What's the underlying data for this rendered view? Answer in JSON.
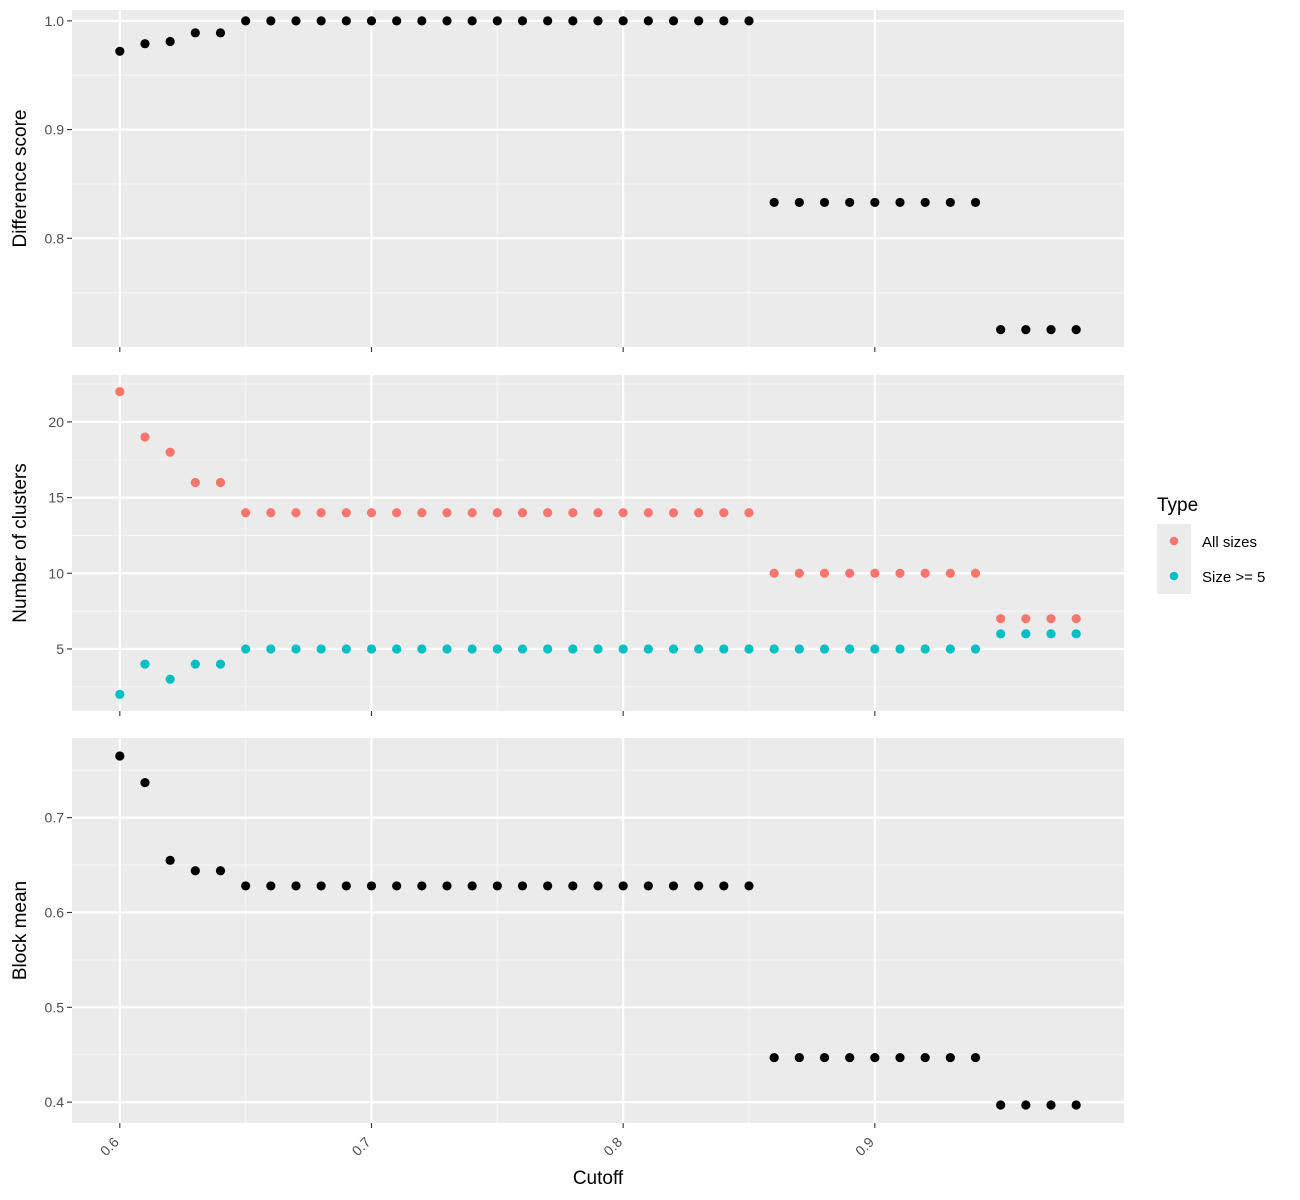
{
  "chart_data": {
    "type": "scatter",
    "xlabel": "Cutoff",
    "xlim": [
      0.581,
      0.999
    ],
    "x_ticks": [
      "0.6",
      "0.7",
      "0.8",
      "0.9"
    ],
    "x": [
      0.6,
      0.61,
      0.62,
      0.63,
      0.64,
      0.65,
      0.66,
      0.67,
      0.68,
      0.69,
      0.7,
      0.71,
      0.72,
      0.73,
      0.74,
      0.75,
      0.76,
      0.77,
      0.78,
      0.79,
      0.8,
      0.81,
      0.82,
      0.83,
      0.84,
      0.85,
      0.86,
      0.87,
      0.88,
      0.89,
      0.9,
      0.91,
      0.92,
      0.93,
      0.94,
      0.95,
      0.96,
      0.97,
      0.98
    ],
    "panels": [
      {
        "ylabel": "Difference score",
        "ylim": [
          0.7,
          1.01
        ],
        "y_ticks": [
          "0.8",
          "0.9",
          "1.0"
        ],
        "series": [
          {
            "color": "#000000",
            "values": [
              0.972,
              0.979,
              0.981,
              0.989,
              0.989,
              1.0,
              1.0,
              1.0,
              1.0,
              1.0,
              1.0,
              1.0,
              1.0,
              1.0,
              1.0,
              1.0,
              1.0,
              1.0,
              1.0,
              1.0,
              1.0,
              1.0,
              1.0,
              1.0,
              1.0,
              1.0,
              0.833,
              0.833,
              0.833,
              0.833,
              0.833,
              0.833,
              0.833,
              0.833,
              0.833,
              0.716,
              0.716,
              0.716,
              0.716
            ]
          }
        ]
      },
      {
        "ylabel": "Number of clusters",
        "ylim": [
          0.9,
          23.1
        ],
        "y_ticks": [
          "5",
          "10",
          "15",
          "20"
        ],
        "series": [
          {
            "name": "All sizes",
            "color": "#F8766D",
            "values": [
              22,
              19,
              18,
              16,
              16,
              14,
              14,
              14,
              14,
              14,
              14,
              14,
              14,
              14,
              14,
              14,
              14,
              14,
              14,
              14,
              14,
              14,
              14,
              14,
              14,
              14,
              10,
              10,
              10,
              10,
              10,
              10,
              10,
              10,
              10,
              7,
              7,
              7,
              7
            ]
          },
          {
            "name": "Size >= 5",
            "color": "#00BFC4",
            "values": [
              2,
              4,
              3,
              4,
              4,
              5,
              5,
              5,
              5,
              5,
              5,
              5,
              5,
              5,
              5,
              5,
              5,
              5,
              5,
              5,
              5,
              5,
              5,
              5,
              5,
              5,
              5,
              5,
              5,
              5,
              5,
              5,
              5,
              5,
              5,
              6,
              6,
              6,
              6
            ]
          }
        ]
      },
      {
        "ylabel": "Block mean",
        "ylim": [
          0.378,
          0.784
        ],
        "y_ticks": [
          "0.4",
          "0.5",
          "0.6",
          "0.7"
        ],
        "series": [
          {
            "color": "#000000",
            "values": [
              0.765,
              0.737,
              0.655,
              0.644,
              0.644,
              0.628,
              0.628,
              0.628,
              0.628,
              0.628,
              0.628,
              0.628,
              0.628,
              0.628,
              0.628,
              0.628,
              0.628,
              0.628,
              0.628,
              0.628,
              0.628,
              0.628,
              0.628,
              0.628,
              0.628,
              0.628,
              0.447,
              0.447,
              0.447,
              0.447,
              0.447,
              0.447,
              0.447,
              0.447,
              0.447,
              0.397,
              0.397,
              0.397,
              0.397
            ]
          }
        ]
      }
    ],
    "grid": true,
    "legend": {
      "title": "Type",
      "position": "right",
      "items": [
        {
          "label": "All sizes",
          "color": "#F8766D"
        },
        {
          "label": "Size >= 5",
          "color": "#00BFC4"
        }
      ]
    }
  }
}
